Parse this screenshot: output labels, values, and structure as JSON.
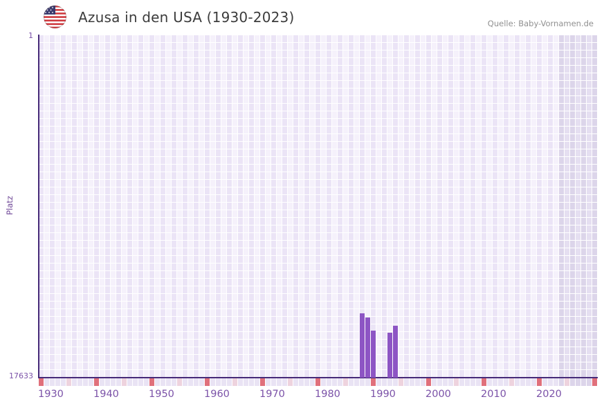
{
  "header": {
    "flag_icon": "us-flag-round-icon",
    "title": "Azusa in den USA (1930-2023)",
    "source": "Quelle: Baby-Vornamen.de"
  },
  "chart_data": {
    "type": "bar",
    "title": "Azusa in den USA (1930-2023)",
    "xlabel": "",
    "ylabel": "Platz",
    "y_axis_top_label": "1",
    "y_axis_bottom_label": "17633",
    "y_min": 1,
    "y_max": 17633,
    "y_inverted": true,
    "x_min": 1930,
    "x_max_data": 2023,
    "x_max_grid": 2030,
    "x_tick_labels": [
      "1930",
      "1940",
      "1950",
      "1960",
      "1970",
      "1980",
      "1990",
      "2000",
      "2010",
      "2020"
    ],
    "grid": true,
    "legend": false,
    "series": [
      {
        "name": "Azusa",
        "points": [
          {
            "year": 1988,
            "rank": 14320
          },
          {
            "year": 1989,
            "rank": 14530
          },
          {
            "year": 1990,
            "rank": 15210
          },
          {
            "year": 1993,
            "rank": 15320
          },
          {
            "year": 1994,
            "rank": 14960
          }
        ]
      }
    ],
    "timeline_strip": {
      "decade_marker_years": [
        1930,
        1940,
        1950,
        1960,
        1970,
        1980,
        1990,
        2000,
        2010,
        2020,
        2030
      ],
      "half_decade_marker_years": [
        1935,
        1945,
        1955,
        1965,
        1975,
        1985,
        1995,
        2005,
        2015,
        2025
      ]
    },
    "colors": {
      "bar": "#8d55c4",
      "axis": "#462a78",
      "tick_text": "#7b52a8",
      "grid_col_even": "#ebe4f6",
      "grid_col_odd": "#f5f1fb",
      "future_col_even": "#dcd5ea",
      "future_col_odd": "#e5dff1",
      "strip_default": "#e9e3f4",
      "strip_half_decade": "#eed3de",
      "strip_decade": "#e0707b"
    }
  }
}
